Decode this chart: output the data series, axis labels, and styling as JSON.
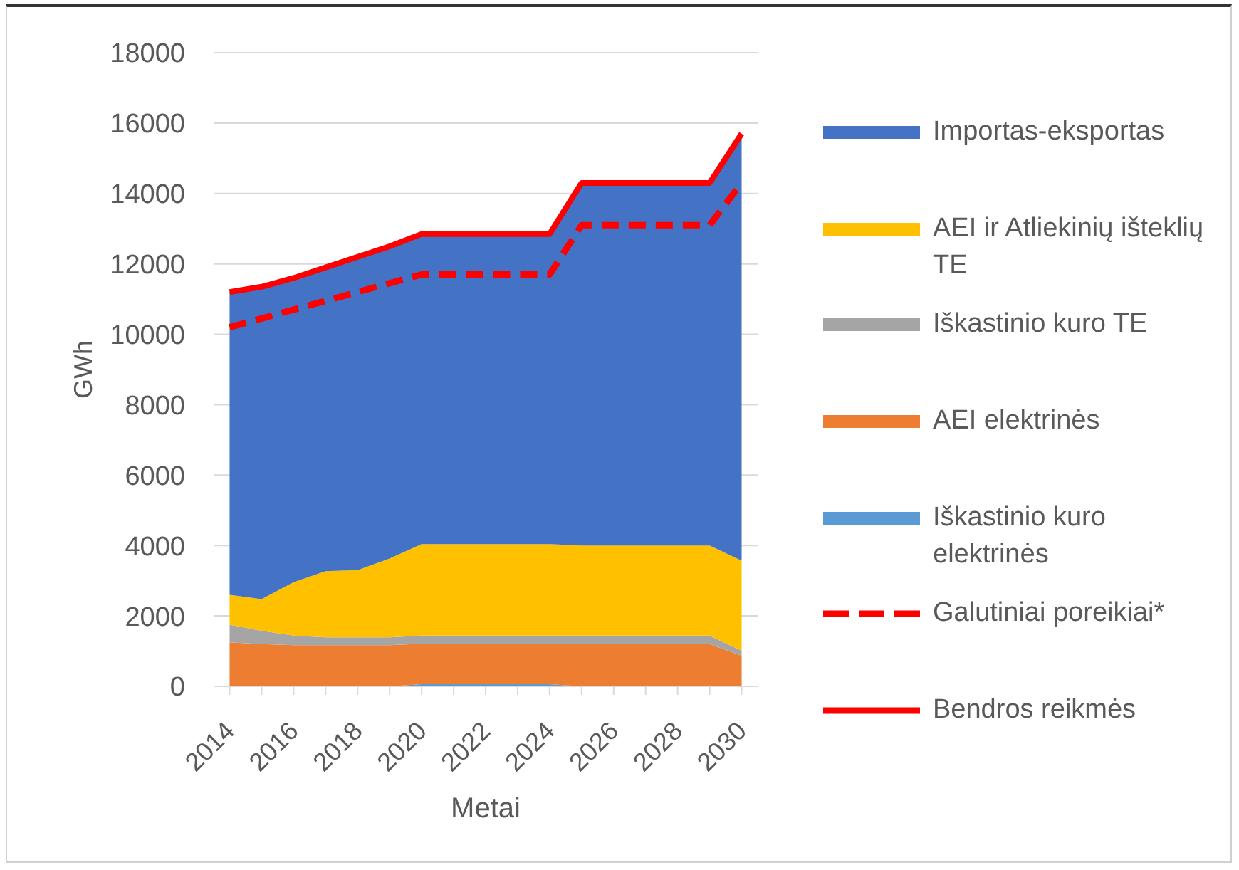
{
  "chart_data": {
    "type": "area",
    "stacked": true,
    "xlabel": "Metai",
    "ylabel": "GWh",
    "categories": [
      "2014",
      null,
      "2016",
      null,
      "2018",
      null,
      "2020",
      null,
      "2022",
      null,
      "2024",
      null,
      "2026",
      null,
      "2028",
      null,
      "2030"
    ],
    "ylim": [
      0,
      18000
    ],
    "yticks": [
      0,
      2000,
      4000,
      6000,
      8000,
      10000,
      12000,
      14000,
      16000,
      18000
    ],
    "grid": "y",
    "legend": "right",
    "series": [
      {
        "name": "Iškastinio kuro elektrinės",
        "color": "#5b9bd5",
        "values": [
          0,
          0,
          0,
          0,
          0,
          0,
          60,
          60,
          60,
          60,
          60,
          0,
          0,
          0,
          0,
          0,
          0
        ]
      },
      {
        "name": "AEI elektrinės",
        "color": "#ed7d31",
        "values": [
          1250,
          1200,
          1170,
          1170,
          1170,
          1170,
          1150,
          1150,
          1150,
          1150,
          1150,
          1200,
          1200,
          1200,
          1200,
          1200,
          870
        ]
      },
      {
        "name": "Iškastinio kuro TE",
        "color": "#a5a5a5",
        "values": [
          500,
          380,
          270,
          220,
          220,
          220,
          230,
          230,
          230,
          230,
          230,
          240,
          240,
          240,
          240,
          240,
          140
        ]
      },
      {
        "name": "AEI ir Atliekinių išteklių TE",
        "color": "#ffc000",
        "values": [
          850,
          900,
          1520,
          1880,
          1910,
          2240,
          2600,
          2600,
          2600,
          2600,
          2600,
          2560,
          2560,
          2560,
          2560,
          2560,
          2560
        ]
      },
      {
        "name": "Importas-eksportas",
        "color": "#4472c4",
        "values": [
          8600,
          8870,
          8640,
          8630,
          8900,
          8870,
          8810,
          8810,
          8810,
          8810,
          8810,
          10300,
          10300,
          10300,
          10300,
          10300,
          12130
        ]
      },
      {
        "name": "Galutiniai poreikiai*",
        "type": "line",
        "line_style": "dashed",
        "color": "#ff0000",
        "values": [
          10200,
          10450,
          10700,
          10950,
          11200,
          11450,
          11700,
          11700,
          11700,
          11700,
          11700,
          13100,
          13100,
          13100,
          13100,
          13100,
          14300
        ]
      },
      {
        "name": "Bendros reikmės",
        "type": "line",
        "line_style": "solid",
        "color": "#ff0000",
        "values": [
          11200,
          11350,
          11600,
          11900,
          12200,
          12500,
          12850,
          12850,
          12850,
          12850,
          12850,
          14300,
          14300,
          14300,
          14300,
          14300,
          15700
        ]
      }
    ]
  }
}
